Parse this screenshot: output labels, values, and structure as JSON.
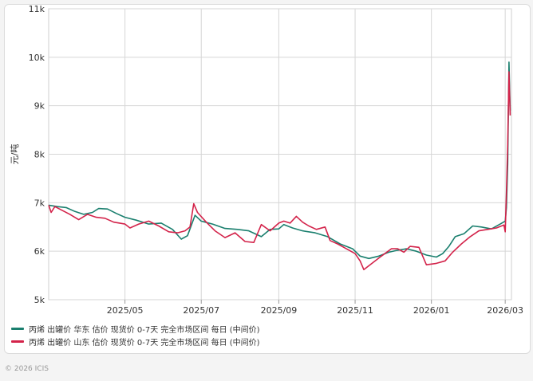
{
  "chart_data": {
    "type": "line",
    "ylabel": "元/吨",
    "ylim": [
      5000,
      11000
    ],
    "xlim": [
      "2025-03-01",
      "2026-03-06"
    ],
    "y_ticks": [
      {
        "value": 5000,
        "label": "5k"
      },
      {
        "value": 6000,
        "label": "6k"
      },
      {
        "value": 7000,
        "label": "7k"
      },
      {
        "value": 8000,
        "label": "8k"
      },
      {
        "value": 9000,
        "label": "9k"
      },
      {
        "value": 10000,
        "label": "10k"
      },
      {
        "value": 11000,
        "label": "11k"
      }
    ],
    "x_ticks": [
      {
        "date": "2025-05-01",
        "label": "2025/05"
      },
      {
        "date": "2025-07-01",
        "label": "2025/07"
      },
      {
        "date": "2025-09-01",
        "label": "2025/09"
      },
      {
        "date": "2025-11-01",
        "label": "2025/11"
      },
      {
        "date": "2026-01-01",
        "label": "2026/01"
      },
      {
        "date": "2026-03-01",
        "label": "2026/03"
      }
    ],
    "grid": true,
    "legend_position": "bottom-left",
    "series": [
      {
        "name": "丙烯 出罐价 华东 估价 现货价 0-7天 完全市场区间 每日 (中间价)",
        "color": "#1a7f6e",
        "points": [
          [
            "2025-03-01",
            6950
          ],
          [
            "2025-03-08",
            6920
          ],
          [
            "2025-03-15",
            6900
          ],
          [
            "2025-03-22",
            6820
          ],
          [
            "2025-03-29",
            6760
          ],
          [
            "2025-04-05",
            6800
          ],
          [
            "2025-04-10",
            6880
          ],
          [
            "2025-04-17",
            6870
          ],
          [
            "2025-04-24",
            6780
          ],
          [
            "2025-05-01",
            6700
          ],
          [
            "2025-05-10",
            6640
          ],
          [
            "2025-05-20",
            6560
          ],
          [
            "2025-05-30",
            6580
          ],
          [
            "2025-06-08",
            6450
          ],
          [
            "2025-06-15",
            6250
          ],
          [
            "2025-06-20",
            6320
          ],
          [
            "2025-06-26",
            6740
          ],
          [
            "2025-07-01",
            6620
          ],
          [
            "2025-07-10",
            6560
          ],
          [
            "2025-07-20",
            6470
          ],
          [
            "2025-07-30",
            6450
          ],
          [
            "2025-08-08",
            6420
          ],
          [
            "2025-08-18",
            6300
          ],
          [
            "2025-08-25",
            6450
          ],
          [
            "2025-09-01",
            6460
          ],
          [
            "2025-09-05",
            6550
          ],
          [
            "2025-09-12",
            6480
          ],
          [
            "2025-09-20",
            6420
          ],
          [
            "2025-09-30",
            6380
          ],
          [
            "2025-10-10",
            6300
          ],
          [
            "2025-10-20",
            6150
          ],
          [
            "2025-10-30",
            6050
          ],
          [
            "2025-11-05",
            5900
          ],
          [
            "2025-11-12",
            5850
          ],
          [
            "2025-11-20",
            5900
          ],
          [
            "2025-11-28",
            5980
          ],
          [
            "2025-12-05",
            6020
          ],
          [
            "2025-12-12",
            6050
          ],
          [
            "2025-12-20",
            6000
          ],
          [
            "2025-12-28",
            5920
          ],
          [
            "2026-01-05",
            5880
          ],
          [
            "2026-01-10",
            5950
          ],
          [
            "2026-01-15",
            6100
          ],
          [
            "2026-01-20",
            6300
          ],
          [
            "2026-01-27",
            6360
          ],
          [
            "2026-02-03",
            6520
          ],
          [
            "2026-02-10",
            6500
          ],
          [
            "2026-02-18",
            6460
          ],
          [
            "2026-02-25",
            6560
          ],
          [
            "2026-03-01",
            6620
          ],
          [
            "2026-03-02",
            6900
          ],
          [
            "2026-03-03",
            7800
          ],
          [
            "2026-03-04",
            9900
          ],
          [
            "2026-03-05",
            8900
          ]
        ]
      },
      {
        "name": "丙烯 出罐价 山东 估价 现货价 0-7天 完全市场区间 每日 (中间价)",
        "color": "#d3234a",
        "points": [
          [
            "2025-03-01",
            6950
          ],
          [
            "2025-03-03",
            6800
          ],
          [
            "2025-03-06",
            6920
          ],
          [
            "2025-03-12",
            6840
          ],
          [
            "2025-03-18",
            6760
          ],
          [
            "2025-03-25",
            6650
          ],
          [
            "2025-04-01",
            6760
          ],
          [
            "2025-04-08",
            6700
          ],
          [
            "2025-04-15",
            6680
          ],
          [
            "2025-04-22",
            6600
          ],
          [
            "2025-05-01",
            6560
          ],
          [
            "2025-05-05",
            6480
          ],
          [
            "2025-05-12",
            6560
          ],
          [
            "2025-05-20",
            6620
          ],
          [
            "2025-05-28",
            6520
          ],
          [
            "2025-06-05",
            6400
          ],
          [
            "2025-06-12",
            6380
          ],
          [
            "2025-06-18",
            6420
          ],
          [
            "2025-06-22",
            6500
          ],
          [
            "2025-06-25",
            6980
          ],
          [
            "2025-06-28",
            6800
          ],
          [
            "2025-07-05",
            6600
          ],
          [
            "2025-07-12",
            6420
          ],
          [
            "2025-07-20",
            6280
          ],
          [
            "2025-07-28",
            6380
          ],
          [
            "2025-08-05",
            6200
          ],
          [
            "2025-08-12",
            6180
          ],
          [
            "2025-08-18",
            6550
          ],
          [
            "2025-08-25",
            6420
          ],
          [
            "2025-09-01",
            6580
          ],
          [
            "2025-09-05",
            6620
          ],
          [
            "2025-09-10",
            6580
          ],
          [
            "2025-09-15",
            6720
          ],
          [
            "2025-09-20",
            6600
          ],
          [
            "2025-09-25",
            6520
          ],
          [
            "2025-10-01",
            6450
          ],
          [
            "2025-10-08",
            6500
          ],
          [
            "2025-10-12",
            6220
          ],
          [
            "2025-10-18",
            6150
          ],
          [
            "2025-10-25",
            6050
          ],
          [
            "2025-11-01",
            5950
          ],
          [
            "2025-11-05",
            5800
          ],
          [
            "2025-11-08",
            5620
          ],
          [
            "2025-11-15",
            5760
          ],
          [
            "2025-11-22",
            5900
          ],
          [
            "2025-11-30",
            6050
          ],
          [
            "2025-12-05",
            6050
          ],
          [
            "2025-12-10",
            5980
          ],
          [
            "2025-12-15",
            6100
          ],
          [
            "2025-12-22",
            6080
          ],
          [
            "2025-12-28",
            5720
          ],
          [
            "2026-01-05",
            5750
          ],
          [
            "2026-01-12",
            5800
          ],
          [
            "2026-01-18",
            5980
          ],
          [
            "2026-01-25",
            6150
          ],
          [
            "2026-02-01",
            6300
          ],
          [
            "2026-02-08",
            6420
          ],
          [
            "2026-02-15",
            6450
          ],
          [
            "2026-02-22",
            6480
          ],
          [
            "2026-02-28",
            6540
          ],
          [
            "2026-03-01",
            6400
          ],
          [
            "2026-03-02",
            7200
          ],
          [
            "2026-03-03",
            8200
          ],
          [
            "2026-03-04",
            9700
          ],
          [
            "2026-03-05",
            8800
          ]
        ]
      }
    ]
  },
  "footer": {
    "copyright": "© 2026 ICIS"
  }
}
